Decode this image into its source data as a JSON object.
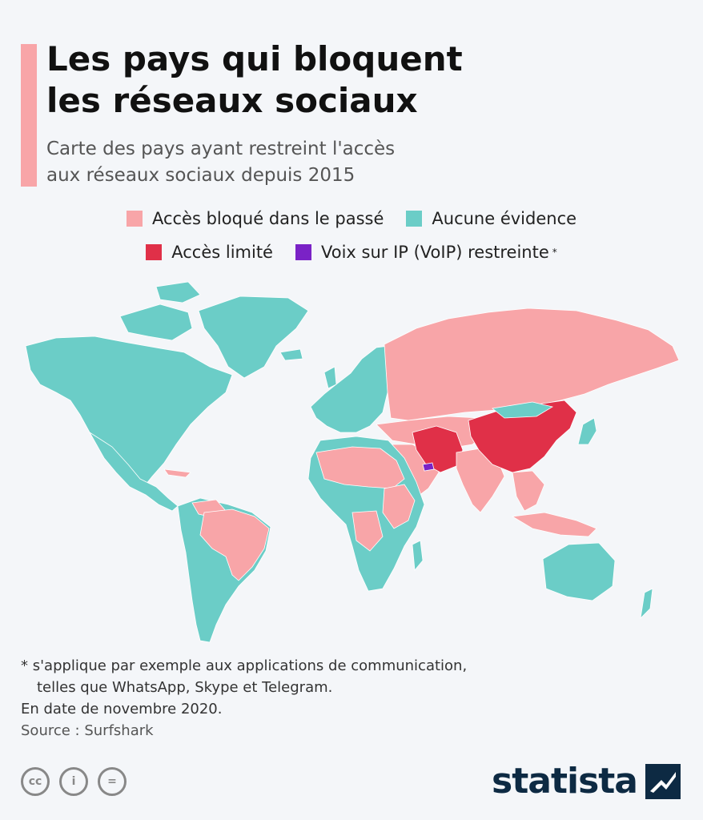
{
  "header": {
    "title_line1": "Les pays qui bloquent",
    "title_line2": "les réseaux sociaux",
    "subtitle_line1": "Carte des pays ayant restreint l'accès",
    "subtitle_line2": "aux réseaux sociaux depuis 2015"
  },
  "legend": {
    "past": {
      "label": "Accès bloqué dans le passé",
      "color": "#f8a5a8"
    },
    "none": {
      "label": "Aucune évidence",
      "color": "#6bcdc7"
    },
    "limited": {
      "label": "Accès limité",
      "color": "#e03048"
    },
    "voip": {
      "label": "Voix sur IP (VoIP) restreinte",
      "marker": "*",
      "color": "#7a22c6"
    }
  },
  "map": {
    "ocean_color": "#f4f6f9"
  },
  "footer": {
    "note_line1": "* s'applique par exemple aux applications de communication,",
    "note_line2": "telles que WhatsApp, Skype et Telegram.",
    "date": "En date de novembre 2020.",
    "source": "Source : Surfshark",
    "license_icons": [
      "cc-icon",
      "attribution-icon",
      "no-derivatives-icon"
    ],
    "license_labels": [
      "cc",
      "i",
      "="
    ],
    "brand": "statista"
  }
}
